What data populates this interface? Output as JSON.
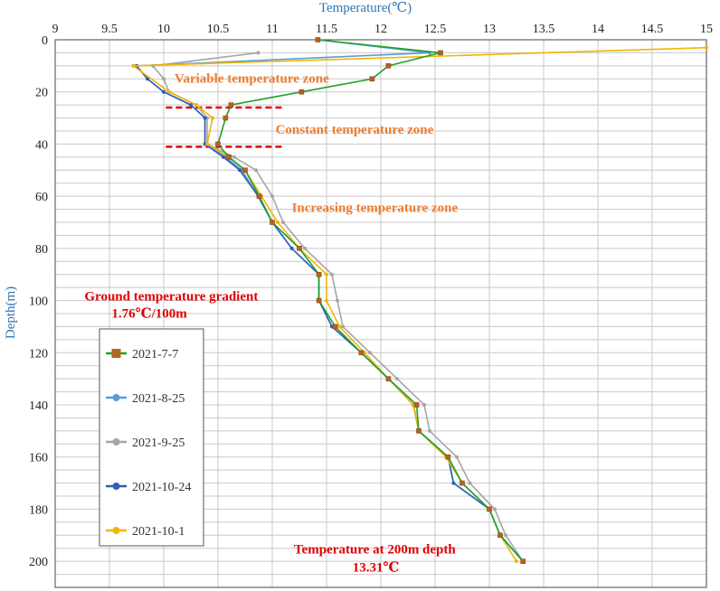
{
  "chart_data": {
    "type": "line",
    "xlabel": "Temperature(℃)",
    "ylabel": "Depth(m)",
    "xlim": [
      9,
      15
    ],
    "ylim": [
      210,
      0
    ],
    "x_axis_position": "top",
    "y_axis_inverted": true,
    "grid": true,
    "legend_position": "bottom-left",
    "x_ticks": [
      "9",
      "9.5",
      "10",
      "10.5",
      "11",
      "11.5",
      "12",
      "12.5",
      "13",
      "13.5",
      "14",
      "14.5",
      "15"
    ],
    "y_ticks": [
      "0",
      "20",
      "40",
      "60",
      "80",
      "100",
      "120",
      "140",
      "160",
      "180",
      "200"
    ],
    "series": [
      {
        "name": "2021-7-7",
        "color": "#1ea12a",
        "marker": "square-brown",
        "points": [
          [
            11.42,
            0
          ],
          [
            12.55,
            5
          ],
          [
            12.07,
            10
          ],
          [
            11.92,
            15
          ],
          [
            11.27,
            20
          ],
          [
            10.62,
            25
          ],
          [
            10.57,
            30
          ],
          [
            10.5,
            40
          ],
          [
            10.6,
            45
          ],
          [
            10.75,
            50
          ],
          [
            10.88,
            60
          ],
          [
            11.0,
            70
          ],
          [
            11.25,
            80
          ],
          [
            11.43,
            90
          ],
          [
            11.43,
            100
          ],
          [
            11.58,
            110
          ],
          [
            11.82,
            120
          ],
          [
            12.07,
            130
          ],
          [
            12.33,
            140
          ],
          [
            12.35,
            150
          ],
          [
            12.62,
            160
          ],
          [
            12.75,
            170
          ],
          [
            13.0,
            180
          ],
          [
            13.1,
            190
          ],
          [
            13.31,
            200
          ]
        ]
      },
      {
        "name": "2021-8-25",
        "color": "#5b9bd5",
        "marker": "circle",
        "points": [
          [
            11.42,
            0
          ],
          [
            12.45,
            5
          ],
          [
            9.75,
            10
          ],
          [
            9.85,
            15
          ],
          [
            10.0,
            20
          ],
          [
            10.25,
            25
          ],
          [
            10.38,
            30
          ],
          [
            10.38,
            40
          ],
          [
            10.57,
            45
          ],
          [
            10.72,
            50
          ],
          [
            10.87,
            60
          ],
          [
            11.0,
            70
          ],
          [
            11.18,
            80
          ],
          [
            11.43,
            90
          ],
          [
            11.43,
            100
          ],
          [
            11.55,
            110
          ],
          [
            11.82,
            120
          ],
          [
            12.07,
            130
          ],
          [
            12.3,
            140
          ],
          [
            12.35,
            150
          ],
          [
            12.62,
            160
          ],
          [
            12.67,
            170
          ],
          [
            13.0,
            180
          ],
          [
            13.1,
            190
          ],
          [
            13.31,
            200
          ]
        ]
      },
      {
        "name": "2021-9-25",
        "color": "#a5a5a5",
        "marker": "circle",
        "points": [
          [
            10.87,
            5
          ],
          [
            9.9,
            10
          ],
          [
            10.0,
            15
          ],
          [
            10.05,
            20
          ],
          [
            10.3,
            25
          ],
          [
            10.4,
            30
          ],
          [
            10.4,
            40
          ],
          [
            10.65,
            45
          ],
          [
            10.85,
            50
          ],
          [
            11.0,
            60
          ],
          [
            11.1,
            70
          ],
          [
            11.3,
            80
          ],
          [
            11.55,
            90
          ],
          [
            11.6,
            100
          ],
          [
            11.65,
            110
          ],
          [
            11.9,
            120
          ],
          [
            12.15,
            130
          ],
          [
            12.4,
            140
          ],
          [
            12.45,
            150
          ],
          [
            12.7,
            160
          ],
          [
            12.82,
            170
          ],
          [
            13.05,
            180
          ],
          [
            13.15,
            190
          ],
          [
            13.31,
            200
          ]
        ]
      },
      {
        "name": "2021-10-24",
        "color": "#2e5fb8",
        "marker": "circle",
        "points": [
          [
            9.75,
            10
          ],
          [
            9.85,
            15
          ],
          [
            10.0,
            20
          ],
          [
            10.25,
            25
          ],
          [
            10.38,
            30
          ],
          [
            10.38,
            40
          ],
          [
            10.55,
            45
          ],
          [
            10.7,
            50
          ],
          [
            10.87,
            60
          ],
          [
            11.0,
            70
          ],
          [
            11.18,
            80
          ],
          [
            11.43,
            90
          ],
          [
            11.43,
            100
          ],
          [
            11.55,
            110
          ],
          [
            11.82,
            120
          ],
          [
            12.07,
            130
          ],
          [
            12.3,
            140
          ],
          [
            12.35,
            150
          ],
          [
            12.62,
            160
          ],
          [
            12.67,
            170
          ],
          [
            13.0,
            180
          ],
          [
            13.1,
            190
          ],
          [
            13.31,
            200
          ]
        ]
      },
      {
        "name": "2021-10-1",
        "color": "#f2b600",
        "marker": "circle",
        "points": [
          [
            15.0,
            3
          ],
          [
            9.72,
            10
          ],
          [
            10.05,
            20
          ],
          [
            10.3,
            25
          ],
          [
            10.45,
            30
          ],
          [
            10.4,
            40
          ],
          [
            10.6,
            45
          ],
          [
            10.75,
            50
          ],
          [
            10.9,
            60
          ],
          [
            11.05,
            70
          ],
          [
            11.25,
            80
          ],
          [
            11.5,
            90
          ],
          [
            11.5,
            100
          ],
          [
            11.62,
            110
          ],
          [
            11.85,
            120
          ],
          [
            12.07,
            130
          ],
          [
            12.3,
            140
          ],
          [
            12.35,
            150
          ],
          [
            12.6,
            160
          ],
          [
            12.75,
            170
          ],
          [
            13.0,
            180
          ],
          [
            13.1,
            190
          ],
          [
            13.25,
            200
          ]
        ]
      }
    ],
    "zone_markers": [
      {
        "depth": 26,
        "x_from": 10.02,
        "x_to": 11.12
      },
      {
        "depth": 41,
        "x_from": 10.02,
        "x_to": 11.12
      }
    ],
    "annotations": [
      {
        "text": "Variable temperature zone",
        "style": "orange",
        "x": 10.1,
        "y": 16.5
      },
      {
        "text": "Constant temperature zone",
        "style": "orange",
        "x": 11.03,
        "y": 36
      },
      {
        "text": "Increasing temperature zone",
        "style": "orange",
        "x": 11.18,
        "y": 66
      },
      {
        "text": "Ground temperature gradient",
        "style": "red",
        "x": 9.27,
        "y": 100
      },
      {
        "text": "1.76℃/100m",
        "style": "red",
        "x": 9.52,
        "y": 106.5
      },
      {
        "text": "Temperature at 200m depth",
        "style": "red",
        "x": 11.2,
        "y": 197
      },
      {
        "text": "13.31℃",
        "style": "red",
        "x": 11.74,
        "y": 204
      }
    ]
  }
}
